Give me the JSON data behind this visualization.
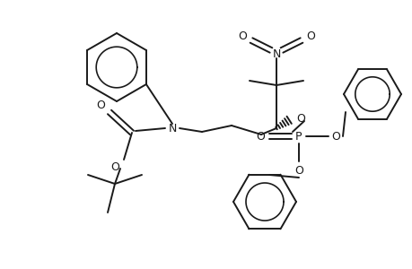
{
  "bg_color": "#ffffff",
  "line_color": "#1a1a1a",
  "lw": 1.4,
  "fig_width": 4.6,
  "fig_height": 3.0,
  "dpi": 100,
  "xlim": [
    0,
    460
  ],
  "ylim": [
    0,
    300
  ]
}
